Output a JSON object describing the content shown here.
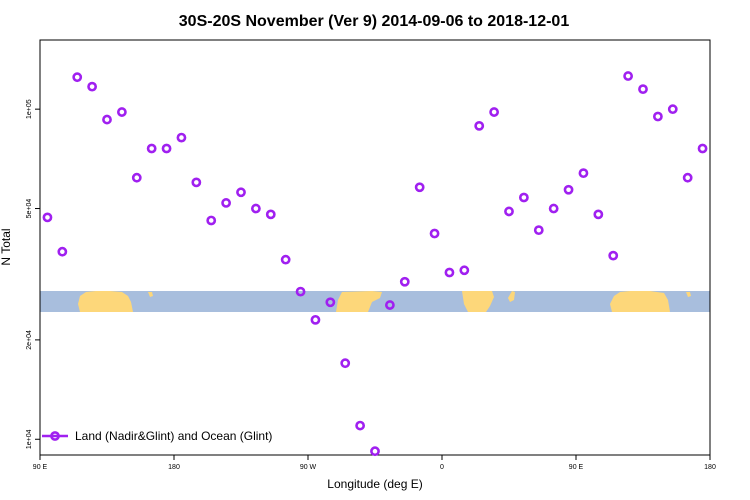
{
  "chart_data": {
    "type": "scatter",
    "title": "30S-20S November (Ver 9)   2014-09-06 to 2018-12-01",
    "xlabel": "Longitude (deg E)",
    "ylabel": "N Total",
    "x_scale": "longitude",
    "y_scale": "log",
    "xlim": [
      90,
      540
    ],
    "ylim": [
      8960,
      162000
    ],
    "x_ticks": [
      {
        "value": 90,
        "label": "90 E"
      },
      {
        "value": 180,
        "label": "180"
      },
      {
        "value": 270,
        "label": "90 W"
      },
      {
        "value": 360,
        "label": "0"
      },
      {
        "value": 450,
        "label": "90 E"
      },
      {
        "value": 540,
        "label": "180"
      }
    ],
    "y_ticks": [
      {
        "value": 10000,
        "label": "1e+04"
      },
      {
        "value": 20000,
        "label": "2e+04"
      },
      {
        "value": 50000,
        "label": "5e+04"
      },
      {
        "value": 100000,
        "label": "1e+05"
      }
    ],
    "legend": {
      "position": "bottom-left"
    },
    "series": [
      {
        "name": "Land (Nadir&Glint) and Ocean (Glint)",
        "color": "#a020f0",
        "marker": "open-circle",
        "x": [
          95,
          105,
          115,
          125,
          135,
          145,
          155,
          165,
          175,
          185,
          195,
          205,
          215,
          225,
          235,
          245,
          255,
          265,
          275,
          285,
          295,
          305,
          315,
          325,
          335,
          345,
          355,
          365,
          375,
          385,
          395,
          405,
          415,
          425,
          435,
          445,
          455,
          465,
          475,
          485,
          495,
          505,
          515,
          525,
          535
        ],
        "y": [
          47000,
          37000,
          125000,
          117000,
          93000,
          98000,
          62000,
          76000,
          76000,
          82000,
          60000,
          46000,
          52000,
          56000,
          50000,
          48000,
          35000,
          28000,
          23000,
          26000,
          17000,
          11000,
          9200,
          25500,
          30000,
          58000,
          42000,
          32000,
          32500,
          89000,
          98000,
          49000,
          54000,
          43000,
          50000,
          57000,
          64000,
          48000,
          36000,
          126000,
          115000,
          95000,
          100000,
          62000,
          76000
        ]
      }
    ]
  }
}
